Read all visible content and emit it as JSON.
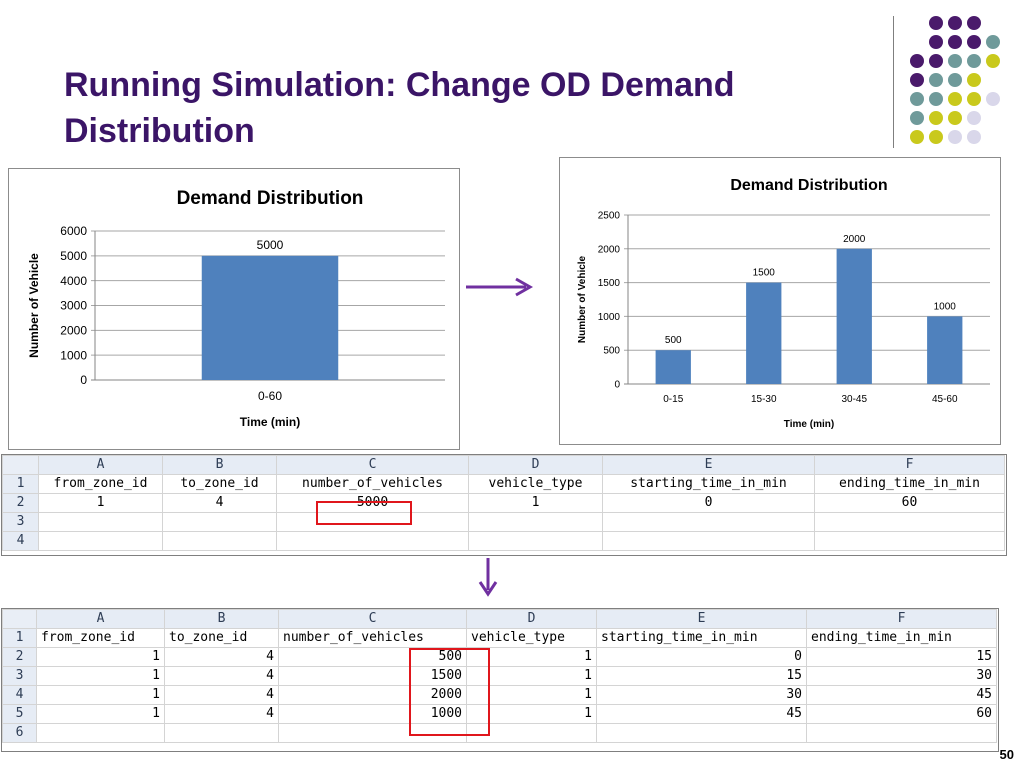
{
  "slide": {
    "title_line1": "Running Simulation: Change OD Demand",
    "title_line2": "Distribution",
    "page_number": "50"
  },
  "colors": {
    "title": "#3b1567",
    "bar": "#4f81bd",
    "arrow": "#7030a0",
    "highlight": "#e0161c"
  },
  "chart_data": [
    {
      "type": "bar",
      "title": "Demand Distribution",
      "xlabel": "Time (min)",
      "ylabel": "Number of Vehicle",
      "categories": [
        "0-60"
      ],
      "values": [
        5000
      ],
      "ylim": [
        0,
        6000
      ],
      "yticks": [
        "0",
        "1000",
        "2000",
        "3000",
        "4000",
        "5000",
        "6000"
      ],
      "data_labels": [
        "5000"
      ],
      "grid": true
    },
    {
      "type": "bar",
      "title": "Demand Distribution",
      "xlabel": "Time (min)",
      "ylabel": "Number of Vehicle",
      "categories": [
        "0-15",
        "15-30",
        "30-45",
        "45-60"
      ],
      "values": [
        500,
        1500,
        2000,
        1000
      ],
      "ylim": [
        0,
        2500
      ],
      "yticks": [
        "0",
        "500",
        "1000",
        "1500",
        "2000",
        "2500"
      ],
      "data_labels": [
        "500",
        "1500",
        "2000",
        "1000"
      ],
      "grid": true
    }
  ],
  "sheet1": {
    "columns": [
      "A",
      "B",
      "C",
      "D",
      "E",
      "F"
    ],
    "row_numbers": [
      "1",
      "2",
      "3",
      "4"
    ],
    "header": [
      "from_zone_id",
      "to_zone_id",
      "number_of_vehicles",
      "vehicle_type",
      "starting_time_in_min",
      "ending_time_in_min"
    ],
    "rows": [
      [
        "1",
        "4",
        "5000",
        "1",
        "0",
        "60"
      ]
    ]
  },
  "sheet2": {
    "columns": [
      "A",
      "B",
      "C",
      "D",
      "E",
      "F"
    ],
    "row_numbers": [
      "1",
      "2",
      "3",
      "4",
      "5",
      "6"
    ],
    "header": [
      "from_zone_id",
      "to_zone_id",
      "number_of_vehicles",
      "vehicle_type",
      "starting_time_in_min",
      "ending_time_in_min"
    ],
    "rows": [
      [
        "1",
        "4",
        "500",
        "1",
        "0",
        "15"
      ],
      [
        "1",
        "4",
        "1500",
        "1",
        "15",
        "30"
      ],
      [
        "1",
        "4",
        "2000",
        "1",
        "30",
        "45"
      ],
      [
        "1",
        "4",
        "1000",
        "1",
        "45",
        "60"
      ]
    ]
  }
}
